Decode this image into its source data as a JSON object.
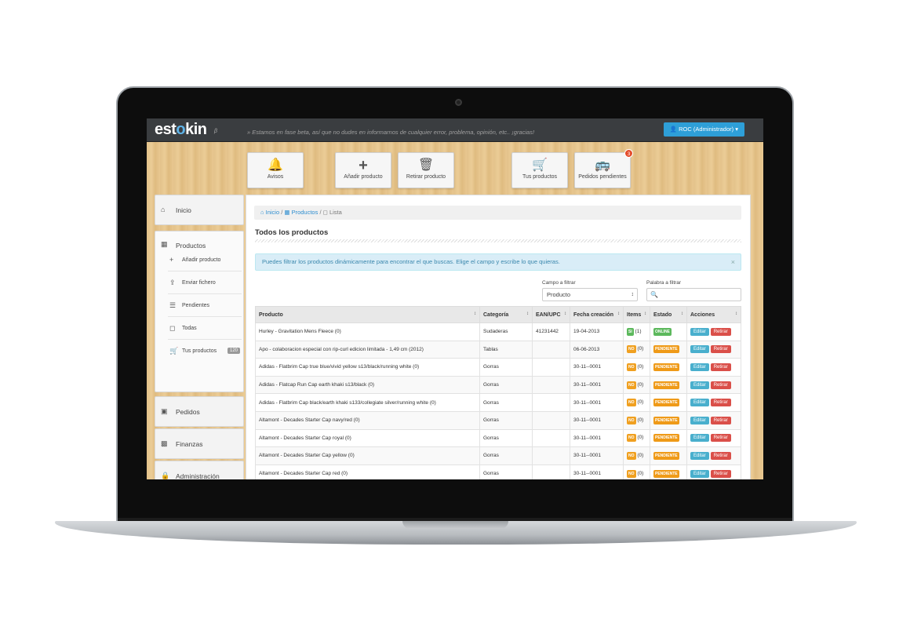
{
  "app": {
    "logo_pre": "est",
    "logo_k": "o",
    "logo_post": "kin",
    "beta": "β",
    "notice": "» Estamos en fase beta, así que no dudes en informarnos de cualquier error, problema, opinión, etc.. ¡gracias!",
    "user": "ROC (Administrador)"
  },
  "toolbar": [
    {
      "label": "Avisos",
      "icon": "bell-icon"
    },
    {
      "label": "Añadir producto",
      "icon": "plus-icon"
    },
    {
      "label": "Retirar producto",
      "icon": "trash-icon"
    },
    {
      "label": "Tus productos",
      "icon": "cart-icon"
    },
    {
      "label": "Pedidos pendientes",
      "icon": "bus-icon",
      "badge": "3"
    }
  ],
  "sidebar": {
    "inicio": "Inicio",
    "productos": "Productos",
    "sub": [
      {
        "label": "Añadir producto",
        "icon": "plus-icon"
      },
      {
        "label": "Enviar fichero",
        "icon": "upload-icon"
      },
      {
        "label": "Pendientes",
        "icon": "list-icon"
      },
      {
        "label": "Todas",
        "icon": "doc-icon"
      },
      {
        "label": "Tus productos",
        "icon": "cart-icon",
        "count": "120"
      }
    ],
    "pedidos": "Pedidos",
    "finanzas": "Finanzas",
    "administracion": "Administración"
  },
  "breadcrumb": {
    "home": "Inicio",
    "productos": "Productos",
    "current": "Lista"
  },
  "title": "Todos los productos",
  "info": "Puedes filtrar los productos dinámicamente para encontrar el que buscas. Elige el campo y escribe lo que quieras.",
  "filter": {
    "field_label": "Campo a filtrar",
    "field_value": "Producto",
    "word_label": "Palabra a filtrar"
  },
  "table": {
    "headers": [
      "Producto",
      "Categoría",
      "EAN/UPC",
      "Fecha creación",
      "Items",
      "Estado",
      "Acciones"
    ],
    "edit": "Editar",
    "remove": "Retirar",
    "rows": [
      {
        "producto": "Hurley - Gravitation Mens Fleece (0)",
        "categoria": "Sudaderas",
        "ean": "41231442",
        "fecha": "19-04-2013",
        "items_flag": "SI",
        "items_count": "(1)",
        "estado": "ONLINE"
      },
      {
        "producto": "Apo - colaboracion especial con rip-curl edicion limitada - 1,49 cm (2012)",
        "categoria": "Tablas",
        "ean": "",
        "fecha": "06-06-2013",
        "items_flag": "NO",
        "items_count": "(0)",
        "estado": "PENDIENTE"
      },
      {
        "producto": "Adidas - Flatbrim Cap true blue/vivid yellow s13/black/running white (0)",
        "categoria": "Gorras",
        "ean": "",
        "fecha": "30-11--0001",
        "items_flag": "NO",
        "items_count": "(0)",
        "estado": "PENDIENTE"
      },
      {
        "producto": "Adidas - Flatcap Run Cap earth khaki s13/black (0)",
        "categoria": "Gorras",
        "ean": "",
        "fecha": "30-11--0001",
        "items_flag": "NO",
        "items_count": "(0)",
        "estado": "PENDIENTE"
      },
      {
        "producto": "Adidas - Flatbrim Cap black/earth khaki s133/collegiate silver/running white (0)",
        "categoria": "Gorras",
        "ean": "",
        "fecha": "30-11--0001",
        "items_flag": "NO",
        "items_count": "(0)",
        "estado": "PENDIENTE"
      },
      {
        "producto": "Altamont - Decades Starter Cap navy/red (0)",
        "categoria": "Gorras",
        "ean": "",
        "fecha": "30-11--0001",
        "items_flag": "NO",
        "items_count": "(0)",
        "estado": "PENDIENTE"
      },
      {
        "producto": "Altamont - Decades Starter Cap royal (0)",
        "categoria": "Gorras",
        "ean": "",
        "fecha": "30-11--0001",
        "items_flag": "NO",
        "items_count": "(0)",
        "estado": "PENDIENTE"
      },
      {
        "producto": "Altamont - Decades Starter Cap yellow (0)",
        "categoria": "Gorras",
        "ean": "",
        "fecha": "30-11--0001",
        "items_flag": "NO",
        "items_count": "(0)",
        "estado": "PENDIENTE"
      },
      {
        "producto": "Altamont - Decades Starter Cap red (0)",
        "categoria": "Gorras",
        "ean": "",
        "fecha": "30-11--0001",
        "items_flag": "NO",
        "items_count": "(0)",
        "estado": "PENDIENTE"
      }
    ]
  }
}
